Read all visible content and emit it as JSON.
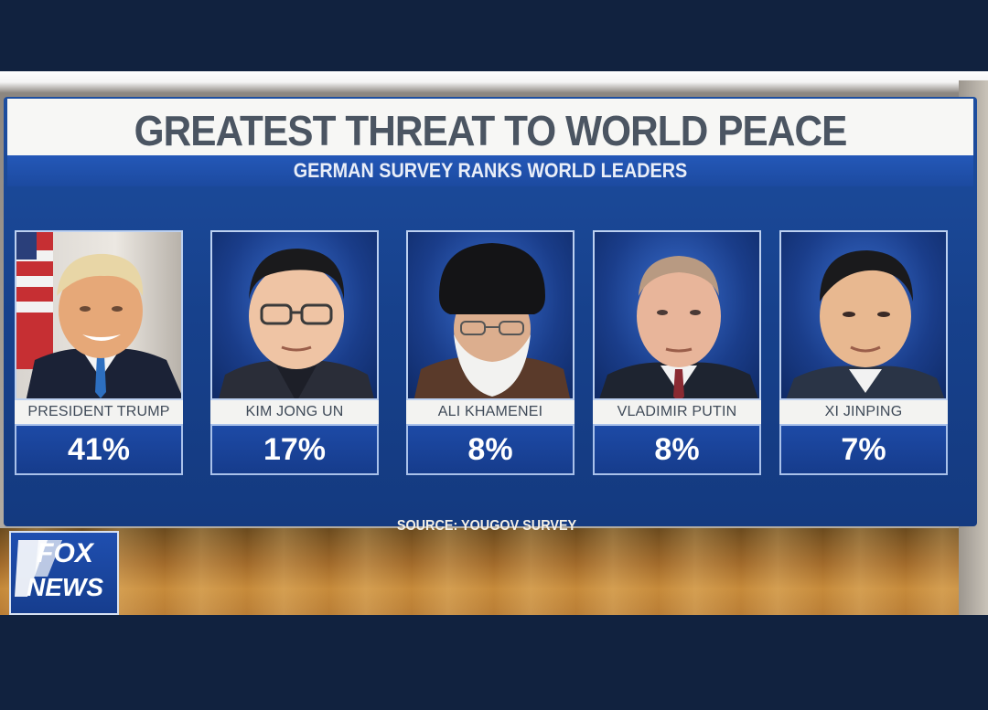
{
  "title": "GREATEST THREAT TO WORLD PEACE",
  "subtitle": "GERMAN SURVEY RANKS WORLD LEADERS",
  "leaders": [
    {
      "name": "PRESIDENT TRUMP",
      "percent": "41%"
    },
    {
      "name": "KIM JONG UN",
      "percent": "17%"
    },
    {
      "name": "ALI KHAMENEI",
      "percent": "8%"
    },
    {
      "name": "VLADIMIR PUTIN",
      "percent": "8%"
    },
    {
      "name": "XI JINPING",
      "percent": "7%"
    }
  ],
  "source": "SOURCE: YOUGOV SURVEY",
  "logo": {
    "line1": "FOX",
    "line2": "NEWS"
  },
  "colors": {
    "panel_blue": "#1d4ea0",
    "frame_navy": "#11223f",
    "title_gray": "#4b5562"
  },
  "icons": [
    "fox-news-logo"
  ]
}
